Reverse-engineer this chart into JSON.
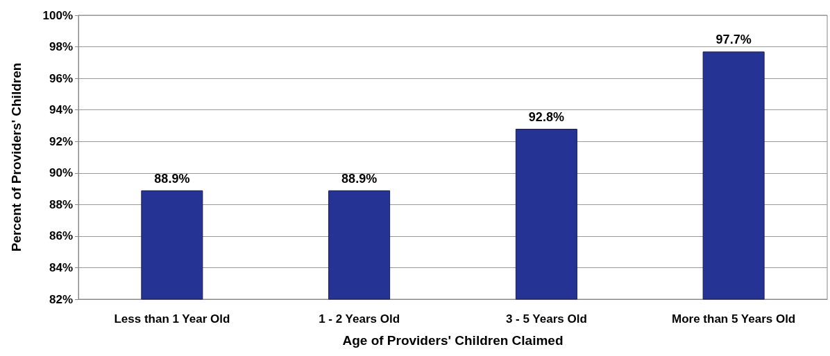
{
  "chart_data": {
    "type": "bar",
    "xlabel": "Age of Providers' Children Claimed",
    "ylabel": "Percent of Providers' Children",
    "categories": [
      "Less than 1 Year Old",
      "1 - 2 Years Old",
      "3 - 5 Years Old",
      "More than 5 Years Old"
    ],
    "values": [
      88.9,
      88.9,
      92.8,
      97.7
    ],
    "color": "#253494",
    "value_labels": [
      "88.9%",
      "88.9%",
      "92.8%",
      "97.7%"
    ],
    "ylim": [
      82,
      100
    ],
    "yticks": [
      {
        "value": 82,
        "label": "82%"
      },
      {
        "value": 84,
        "label": "84%"
      },
      {
        "value": 86,
        "label": "86%"
      },
      {
        "value": 88,
        "label": "88%"
      },
      {
        "value": 90,
        "label": "90%"
      },
      {
        "value": 92,
        "label": "92%"
      },
      {
        "value": 94,
        "label": "94%"
      },
      {
        "value": 96,
        "label": "96%"
      },
      {
        "value": 98,
        "label": "98%"
      },
      {
        "value": 100,
        "label": "100%"
      }
    ],
    "grid": "y"
  }
}
